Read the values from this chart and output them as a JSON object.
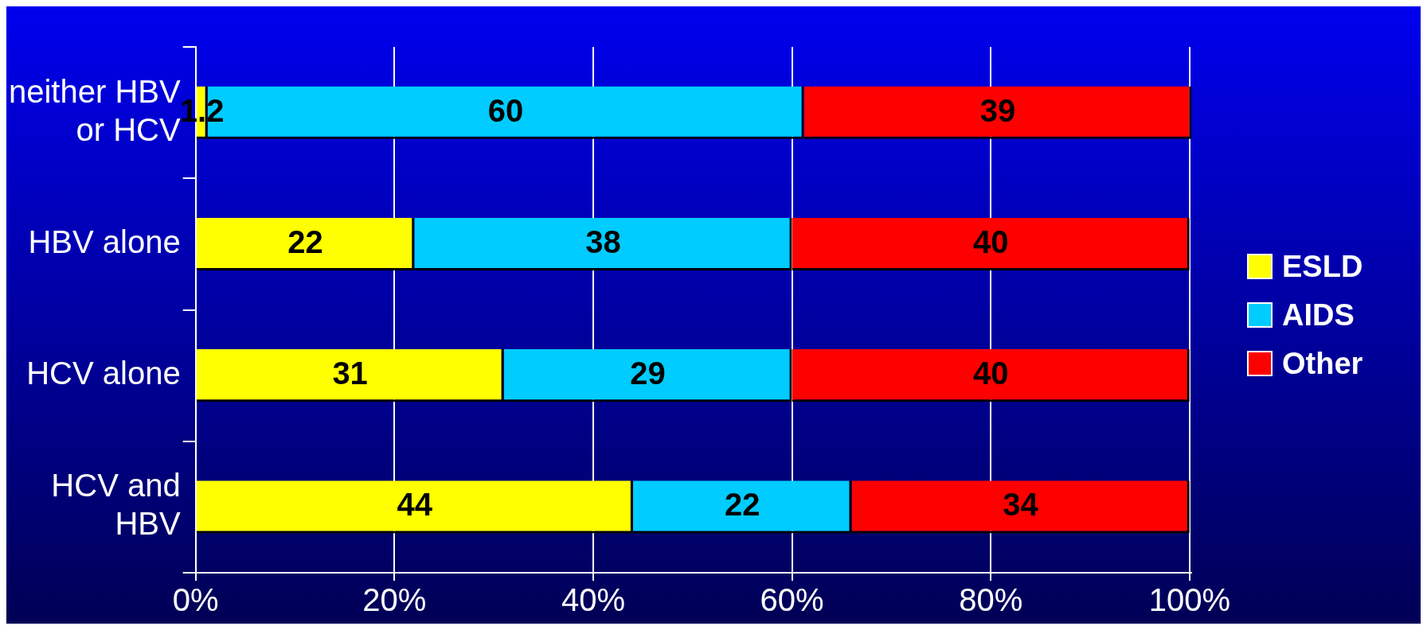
{
  "chart_data": {
    "type": "bar",
    "orientation": "horizontal",
    "stacked": true,
    "categories": [
      "neither HBV or HCV",
      "HBV alone",
      "HCV alone",
      "HCV and HBV"
    ],
    "series": [
      {
        "name": "ESLD",
        "color": "#ffff00",
        "values": [
          1.2,
          22,
          31,
          44
        ]
      },
      {
        "name": "AIDS",
        "color": "#00ccff",
        "values": [
          60,
          38,
          29,
          22
        ]
      },
      {
        "name": "Other",
        "color": "#ff0000",
        "values": [
          39,
          40,
          40,
          34
        ]
      }
    ],
    "xlim": [
      0,
      100.2
    ],
    "xticks": [
      {
        "value": 0,
        "label": "0%"
      },
      {
        "value": 20,
        "label": "20%"
      },
      {
        "value": 40,
        "label": "40%"
      },
      {
        "value": 60,
        "label": "60%"
      },
      {
        "value": 80,
        "label": "80%"
      },
      {
        "value": 100,
        "label": "100%"
      }
    ],
    "grid": "x",
    "legend": "right",
    "data_labels": true
  }
}
